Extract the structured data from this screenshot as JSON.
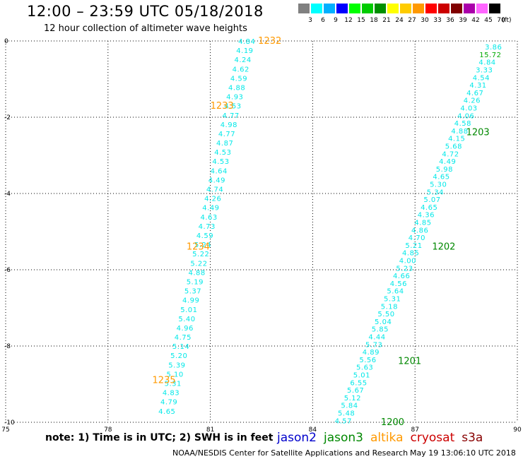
{
  "header": {
    "title": "12:00 – 23:59 UTC 05/18/2018",
    "subtitle": "12 hour collection of altimeter wave heights"
  },
  "color_scale": {
    "labels": [
      "3",
      "6",
      "9",
      "12",
      "15",
      "18",
      "21",
      "24",
      "27",
      "30",
      "33",
      "36",
      "39",
      "42",
      "45",
      "70"
    ],
    "unit": "(ft)",
    "colors": [
      "#808080",
      "#00ffff",
      "#00b0ff",
      "#0000ff",
      "#00ff00",
      "#00cc00",
      "#009000",
      "#ffff00",
      "#ffcc00",
      "#ff9900",
      "#ff0000",
      "#cc0000",
      "#800000",
      "#aa00aa",
      "#ff66ff",
      "#000000"
    ]
  },
  "footer": {
    "note": "note:  1) Time is in UTC;  2) SWH is in feet",
    "credit": "NOAA/NESDIS Center for Satellite Applications and Research",
    "timestamp": "May 19 13:06:10 UTC 2018",
    "satellites": [
      {
        "name": "jason2",
        "color": "#0000cc"
      },
      {
        "name": "jason3",
        "color": "#008800"
      },
      {
        "name": "altika",
        "color": "#ff9900"
      },
      {
        "name": "cryosat",
        "color": "#cc0000"
      },
      {
        "name": "s3a",
        "color": "#880000"
      }
    ]
  },
  "chart_data": {
    "type": "scatter",
    "xlim": [
      75,
      90
    ],
    "ylim": [
      -10,
      0
    ],
    "xticks": [
      "75",
      "78",
      "81",
      "84",
      "87",
      "90"
    ],
    "yticks": [
      "0",
      "-2",
      "-4",
      "-6",
      "-8",
      "-10"
    ],
    "grid": true,
    "series": [
      {
        "name": "altika",
        "color": "#00e8e8",
        "label_color": "#ff9900",
        "start": [
          82.07,
          0.0
        ],
        "end": [
          79.73,
          -9.7
        ],
        "values": [
          "4.84",
          "4.19",
          "4.24",
          "4.62",
          "4.59",
          "4.88",
          "4.93",
          "4.53",
          "4.77",
          "4.98",
          "4.77",
          "4.87",
          "4.53",
          "4.53",
          "4.64",
          "4.49",
          "4.74",
          "4.26",
          "4.49",
          "4.63",
          "4.73",
          "4.59",
          "5.24",
          "5.22",
          "5.22",
          "4.88",
          "5.19",
          "5.37",
          "4.99",
          "5.01",
          "5.40",
          "4.96",
          "4.75",
          "5.14",
          "5.20",
          "5.39",
          "5.10",
          "5.31",
          "4.83",
          "4.79",
          "4.65"
        ],
        "pass_labels": [
          {
            "text": "1232",
            "x": 82.4,
            "y": 0.0
          },
          {
            "text": "1233",
            "x": 81.0,
            "y": -1.7
          },
          {
            "text": "1234",
            "x": 80.3,
            "y": -5.4
          },
          {
            "text": "1235",
            "x": 79.3,
            "y": -8.9
          }
        ]
      },
      {
        "name": "jason3",
        "color": "#00e8e8",
        "label_color": "#008800",
        "start": [
          89.3,
          -0.15
        ],
        "end": [
          84.9,
          -9.95
        ],
        "values": [
          "3.86",
          "15.72",
          "4.84",
          "3.33",
          "4.54",
          "4.31",
          "4.67",
          "4.26",
          "4.03",
          "4.06",
          "4.58",
          "4.88",
          "4.15",
          "5.68",
          "4.72",
          "4.49",
          "5.98",
          "4.65",
          "5.30",
          "5.34",
          "5.07",
          "4.65",
          "4.36",
          "4.85",
          "4.86",
          "4.70",
          "5.21",
          "4.85",
          "4.00",
          "5.23",
          "4.66",
          "4.56",
          "5.64",
          "5.31",
          "5.18",
          "5.50",
          "5.04",
          "5.85",
          "4.44",
          "5.73",
          "4.89",
          "5.56",
          "5.63",
          "5.01",
          "6.55",
          "5.67",
          "5.12",
          "5.84",
          "5.48",
          "4.57"
        ],
        "highlight": {
          "index": 1,
          "color": "#00aa00"
        },
        "pass_labels": [
          {
            "text": "1203",
            "x": 88.5,
            "y": -2.4
          },
          {
            "text": "1202",
            "x": 87.5,
            "y": -5.4
          },
          {
            "text": "1201",
            "x": 86.5,
            "y": -8.4
          },
          {
            "text": "1200",
            "x": 86.0,
            "y": -10.0
          }
        ]
      }
    ]
  }
}
